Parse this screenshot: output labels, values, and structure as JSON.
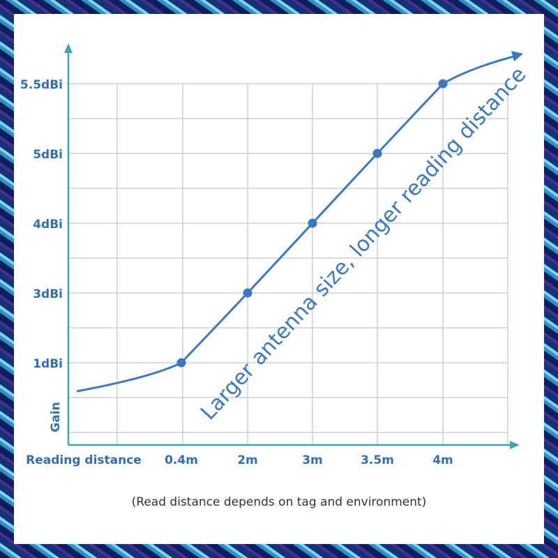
{
  "chart_data": {
    "type": "line",
    "categories": [
      "0.4m",
      "2m",
      "3m",
      "3.5m",
      "4m"
    ],
    "values": [
      1,
      3,
      4,
      5,
      5.5
    ],
    "color": "#3b78c4",
    "yticks": [
      {
        "value": 1,
        "label": "1dBi"
      },
      {
        "value": 3,
        "label": "3dBi"
      },
      {
        "value": 4,
        "label": "4dBi"
      },
      {
        "value": 5,
        "label": "5dBi"
      },
      {
        "value": 5.5,
        "label": "5.5dBi"
      }
    ],
    "x_label": "Reading distance",
    "y_label": "Gain",
    "annotation": "Larger antenna size, longer reading distance",
    "footnote": "(Read distance depends on tag and environment)",
    "grid": true
  }
}
